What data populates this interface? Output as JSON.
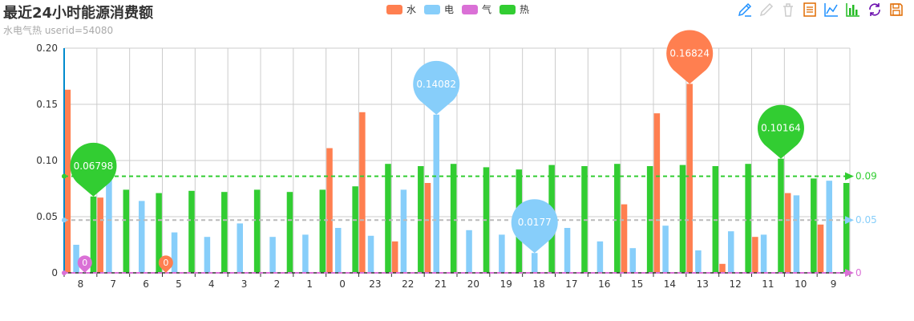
{
  "header": {
    "title": "最近24小时能源消费额",
    "subtitle": "水电气热 userid=54080"
  },
  "legend": [
    {
      "name": "水",
      "color": "#ff7f50"
    },
    {
      "name": "电",
      "color": "#87cefa"
    },
    {
      "name": "气",
      "color": "#da70d6"
    },
    {
      "name": "热",
      "color": "#32cd32"
    }
  ],
  "toolbox": [
    {
      "name": "mark-icon",
      "color": "#1e90ff"
    },
    {
      "name": "mark-undo-icon",
      "color": "#cccccc"
    },
    {
      "name": "mark-clear-icon",
      "color": "#cccccc"
    },
    {
      "name": "data-view-icon",
      "color": "#e06b00"
    },
    {
      "name": "line-chart-icon",
      "color": "#1e90ff"
    },
    {
      "name": "bar-chart-icon",
      "color": "#22bb22"
    },
    {
      "name": "restore-icon",
      "color": "#6a0dad"
    },
    {
      "name": "save-image-icon",
      "color": "#e06b00"
    }
  ],
  "chart_data": {
    "type": "bar",
    "title": "最近24小时能源消费额",
    "subtitle": "水电气热 userid=54080",
    "categories": [
      "8",
      "7",
      "6",
      "5",
      "4",
      "3",
      "2",
      "1",
      "0",
      "23",
      "22",
      "21",
      "20",
      "19",
      "18",
      "17",
      "16",
      "15",
      "14",
      "13",
      "12",
      "11",
      "10",
      "9"
    ],
    "ylim": [
      0,
      0.2
    ],
    "yticks": [
      "0",
      "0.05",
      "0.10",
      "0.15",
      "0.20"
    ],
    "grid": true,
    "legend_position": "top-center",
    "series": [
      {
        "name": "水",
        "color": "#ff7f50",
        "values": [
          0.163,
          0.067,
          0,
          0,
          0,
          0,
          0,
          0,
          0.111,
          0.143,
          0.028,
          0.08,
          0,
          0,
          0,
          0,
          0,
          0.061,
          0.142,
          0.16824,
          0.008,
          0.032,
          0.071,
          0.043
        ],
        "pins": [
          {
            "index": 3,
            "label": "0",
            "size": "small"
          },
          {
            "index": 19,
            "label": "0.16824",
            "size": "large"
          }
        ],
        "avg_line": null
      },
      {
        "name": "电",
        "color": "#87cefa",
        "values": [
          0.025,
          0.086,
          0.064,
          0.036,
          0.032,
          0.044,
          0.032,
          0.034,
          0.04,
          0.033,
          0.074,
          0.14082,
          0.038,
          0.034,
          0.0177,
          0.04,
          0.028,
          0.022,
          0.042,
          0.02,
          0.037,
          0.034,
          0.069,
          0.082
        ],
        "pins": [
          {
            "index": 11,
            "label": "0.14082",
            "size": "large"
          },
          {
            "index": 14,
            "label": "0.0177",
            "size": "large"
          }
        ],
        "avg_line": {
          "value": 0.047,
          "label": "0.05"
        }
      },
      {
        "name": "气",
        "color": "#da70d6",
        "values": [
          0,
          0,
          0,
          0,
          0,
          0,
          0,
          0,
          0,
          0,
          0,
          0,
          0,
          0,
          0,
          0,
          0,
          0,
          0,
          0,
          0,
          0,
          0,
          0
        ],
        "pins": [
          {
            "index": 0,
            "label": "0",
            "size": "small"
          }
        ],
        "avg_line": {
          "value": 0,
          "label": "0"
        }
      },
      {
        "name": "热",
        "color": "#32cd32",
        "values": [
          0.06798,
          0.074,
          0.071,
          0.073,
          0.072,
          0.074,
          0.072,
          0.074,
          0.077,
          0.097,
          0.095,
          0.097,
          0.094,
          0.092,
          0.096,
          0.095,
          0.097,
          0.095,
          0.096,
          0.095,
          0.097,
          0.10164,
          0.084,
          0.08
        ],
        "pins": [
          {
            "index": 0,
            "label": "0.06798",
            "size": "large"
          },
          {
            "index": 21,
            "label": "0.10164",
            "size": "large"
          }
        ],
        "avg_line": {
          "value": 0.086,
          "label": "0.09"
        }
      }
    ]
  }
}
